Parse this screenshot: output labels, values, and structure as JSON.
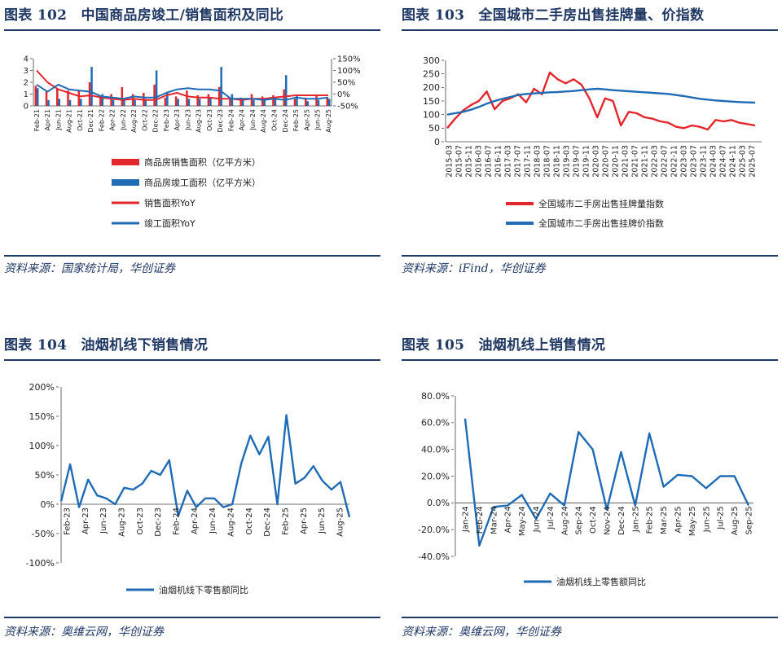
{
  "panels": [
    {
      "title": "图表 102　中国商品房竣工/销售面积及同比",
      "source": "资料来源：国家统计局，华创证券",
      "chart_data": {
        "type": "bar",
        "left_axis": {
          "ticks": [
            "4",
            "3",
            "2",
            "1",
            "0"
          ],
          "ylim": [
            0,
            4
          ]
        },
        "right_axis": {
          "ticks": [
            "150%",
            "100%",
            "50%",
            "0%",
            "-50%"
          ],
          "ylim": [
            -50,
            150
          ]
        },
        "x_tick_labels": [
          "Feb-21",
          "Apr-21",
          "Jun-21",
          "Aug-21",
          "Oct-21",
          "Dec-21",
          "Feb-22",
          "Apr-22",
          "Jun-22",
          "Aug-22",
          "Oct-22",
          "Dec-22",
          "Feb-23",
          "Apr-23",
          "Jun-23",
          "Aug-23",
          "Oct-23",
          "Dec-23",
          "Feb-24",
          "Apr-24",
          "Jun-24",
          "Aug-24",
          "Oct-24",
          "Dec-24",
          "Feb-25",
          "Apr-25",
          "Jun-25",
          "Aug-25"
        ],
        "series": [
          {
            "name": "商品房销售面积（亿平方米）",
            "type": "bar",
            "axis": "left",
            "color": "#e3272d",
            "values": [
              1.7,
              1.3,
              1.5,
              1.3,
              1.3,
              2.0,
              0.8,
              1.0,
              1.6,
              1.0,
              1.1,
              1.8,
              0.7,
              0.8,
              1.3,
              0.9,
              1.0,
              1.6,
              0.6,
              0.7,
              1.0,
              0.8,
              0.9,
              1.4,
              0.6,
              0.7,
              0.9,
              0.7
            ]
          },
          {
            "name": "商品房竣工面积（亿平方米）",
            "type": "bar",
            "axis": "left",
            "color": "#1f6bb5",
            "values": [
              1.5,
              0.5,
              0.6,
              0.5,
              0.6,
              3.3,
              1.0,
              0.5,
              0.5,
              0.5,
              0.6,
              3.0,
              1.2,
              0.6,
              0.6,
              0.6,
              0.7,
              3.3,
              1.0,
              0.5,
              0.5,
              0.5,
              0.6,
              2.6,
              0.9,
              0.4,
              0.5,
              0.6
            ]
          },
          {
            "name": "销售面积YoY",
            "type": "line",
            "axis": "right",
            "color": "#e3272d",
            "values": [
              100,
              50,
              20,
              5,
              -10,
              -5,
              -15,
              -20,
              -25,
              -20,
              -25,
              -25,
              -5,
              5,
              -10,
              -15,
              -15,
              -20,
              -20,
              -25,
              -20,
              -20,
              -15,
              -10,
              -5,
              -5,
              -5,
              -5
            ]
          },
          {
            "name": "竣工面积YoY",
            "type": "line",
            "axis": "right",
            "color": "#1f6bb5",
            "values": [
              40,
              10,
              40,
              20,
              15,
              10,
              -10,
              -15,
              -20,
              -10,
              -15,
              -15,
              5,
              20,
              25,
              20,
              20,
              15,
              -20,
              -20,
              -20,
              -25,
              -20,
              -25,
              -15,
              -20,
              -20,
              -15
            ]
          }
        ]
      }
    },
    {
      "title": "图表 103　全国城市二手房出售挂牌量、价指数",
      "source": "资料来源：iFind，华创证券",
      "chart_data": {
        "type": "line",
        "ylim": [
          0,
          300
        ],
        "y_ticks": [
          "300",
          "250",
          "200",
          "150",
          "100",
          "50",
          "0"
        ],
        "x_tick_labels": [
          "2015-03",
          "2015-07",
          "2015-11",
          "2016-03",
          "2016-07",
          "2016-11",
          "2017-03",
          "2017-07",
          "2017-11",
          "2018-03",
          "2018-07",
          "2018-11",
          "2019-03",
          "2019-07",
          "2019-11",
          "2020-03",
          "2020-07",
          "2020-11",
          "2021-03",
          "2021-07",
          "2021-11",
          "2022-03",
          "2022-07",
          "2022-11",
          "2023-03",
          "2023-07",
          "2023-11",
          "2024-03",
          "2024-07",
          "2024-11",
          "2025-03",
          "2025-07"
        ],
        "series": [
          {
            "name": "全国城市二手房出售挂牌量指数",
            "color": "#e3272d",
            "values": [
              50,
              85,
              115,
              135,
              150,
              185,
              120,
              150,
              160,
              175,
              145,
              195,
              175,
              255,
              230,
              215,
              230,
              210,
              160,
              90,
              160,
              150,
              60,
              110,
              105,
              90,
              85,
              75,
              70,
              55,
              50,
              60,
              55,
              45,
              80,
              75,
              80,
              70,
              65,
              60
            ]
          },
          {
            "name": "全国城市二手房出售挂牌价指数",
            "color": "#1f6bb5",
            "values": [
              100,
              105,
              110,
              118,
              128,
              140,
              150,
              158,
              165,
              172,
              176,
              178,
              180,
              182,
              183,
              185,
              187,
              190,
              193,
              195,
              193,
              190,
              188,
              186,
              184,
              182,
              180,
              178,
              176,
              172,
              168,
              163,
              158,
              155,
              152,
              150,
              148,
              146,
              145,
              144
            ]
          }
        ]
      }
    },
    {
      "title": "图表 104　油烟机线下销售情况",
      "source": "资料来源：奥维云网，华创证券",
      "chart_data": {
        "type": "line",
        "ylim": [
          -100,
          200
        ],
        "y_ticks": [
          "200%",
          "150%",
          "100%",
          "50%",
          "0%",
          "-50%",
          "-100%"
        ],
        "x_tick_labels": [
          "Feb-23",
          "Apr-23",
          "Jun-23",
          "Aug-23",
          "Oct-23",
          "Dec-23",
          "Feb-24",
          "Apr-24",
          "Jun-24",
          "Aug-24",
          "Oct-24",
          "Dec-24",
          "Feb-25",
          "Apr-25",
          "Jun-25",
          "Aug-25"
        ],
        "series": [
          {
            "name": "油烟机线下零售额同比",
            "color": "#1f6bb5",
            "values": [
              5,
              68,
              -5,
              42,
              15,
              10,
              0,
              28,
              25,
              35,
              57,
              50,
              75,
              -20,
              23,
              -5,
              10,
              10,
              -5,
              0,
              70,
              117,
              85,
              115,
              0,
              152,
              35,
              45,
              65,
              40,
              25,
              38,
              -22
            ]
          }
        ]
      }
    },
    {
      "title": "图表 105　油烟机线上销售情况",
      "source": "资料来源：奥维云网，华创证券",
      "chart_data": {
        "type": "line",
        "ylim": [
          -40,
          80
        ],
        "y_ticks": [
          "80.0%",
          "60.0%",
          "40.0%",
          "20.0%",
          "0.0%",
          "-20.0%",
          "-40.0%"
        ],
        "x_tick_labels": [
          "Jan-24",
          "Feb-24",
          "Mar-24",
          "Apr-24",
          "May-24",
          "Jun-24",
          "Jul-24",
          "Aug-24",
          "Sep-24",
          "Oct-24",
          "Nov-24",
          "Dec-24",
          "Jan-25",
          "Feb-25",
          "Mar-25",
          "Apr-25",
          "May-25",
          "Jun-25",
          "Jul-25",
          "Aug-25",
          "Sep-25"
        ],
        "series": [
          {
            "name": "油烟机线上零售额同比",
            "color": "#1f6bb5",
            "values": [
              63,
              -32,
              -3,
              -2,
              6,
              -12,
              7,
              -2,
              53,
              40,
              -5,
              38,
              -2,
              52,
              12,
              21,
              20,
              11,
              20,
              20,
              -2
            ]
          }
        ]
      }
    }
  ]
}
